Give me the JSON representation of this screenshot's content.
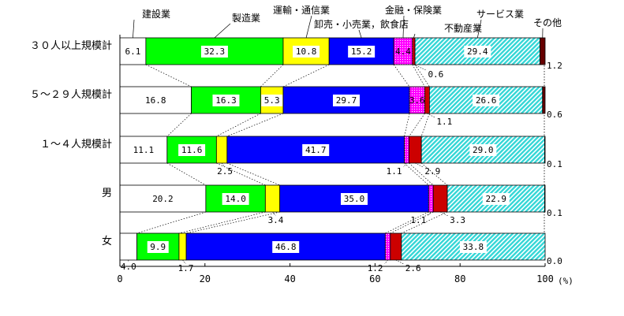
{
  "chart_data": {
    "type": "bar",
    "orientation": "horizontal",
    "stacked": true,
    "categories": [
      "３０人以上規模計",
      "５～２９人規模計",
      "１～４人規模計",
      "男",
      "女"
    ],
    "series": [
      {
        "name": "建設業",
        "color": "#ffffff",
        "values": [
          6.1,
          16.8,
          11.1,
          20.2,
          4.0
        ]
      },
      {
        "name": "製造業",
        "color": "#00ff00",
        "values": [
          32.3,
          16.3,
          11.6,
          14.0,
          9.9
        ]
      },
      {
        "name": "運輸・通信業",
        "color": "#ffff00",
        "values": [
          10.8,
          5.3,
          2.5,
          3.4,
          1.7
        ]
      },
      {
        "name": "卸売・小売業，飲食店",
        "color": "#0000ff",
        "values": [
          15.2,
          29.7,
          41.7,
          35.0,
          46.8
        ]
      },
      {
        "name": "金融・保険業",
        "color": "#ff00ff",
        "values": [
          4.4,
          3.6,
          1.1,
          1.1,
          1.2
        ]
      },
      {
        "name": "不動産業",
        "color": "#cc0000",
        "values": [
          0.6,
          1.1,
          2.9,
          3.3,
          2.6
        ]
      },
      {
        "name": "サービス業",
        "color": "#66e0e0",
        "values": [
          29.4,
          26.6,
          29.0,
          22.9,
          33.8
        ]
      },
      {
        "name": "その他",
        "color": "#660000",
        "values": [
          1.2,
          0.6,
          0.1,
          0.1,
          0.0
        ]
      }
    ],
    "value_labels": [
      [
        "6.1",
        "32.3",
        "10.8",
        "15.2",
        "4.4",
        "0.6",
        "29.4",
        "1.2"
      ],
      [
        "16.8",
        "16.3",
        "5.3",
        "29.7",
        "3.6",
        "1.1",
        "26.6",
        "0.6"
      ],
      [
        "11.1",
        "11.6",
        "2.5",
        "41.7",
        "1.1",
        "2.9",
        "29.0",
        "0.1"
      ],
      [
        "20.2",
        "14.0",
        "3.4",
        "35.0",
        "1.1",
        "3.3",
        "22.9",
        "0.1"
      ],
      [
        "4.0",
        "9.9",
        "1.7",
        "46.8",
        "1.2",
        "2.6",
        "33.8",
        "0.0"
      ]
    ],
    "xlim": [
      0,
      100
    ],
    "xticks": [
      0,
      20,
      40,
      60,
      80,
      100
    ],
    "xtick_labels": [
      "0",
      "20",
      "40",
      "60",
      "80",
      "100"
    ],
    "xunit": "(%)",
    "grid": false,
    "legend_placement": "top"
  }
}
